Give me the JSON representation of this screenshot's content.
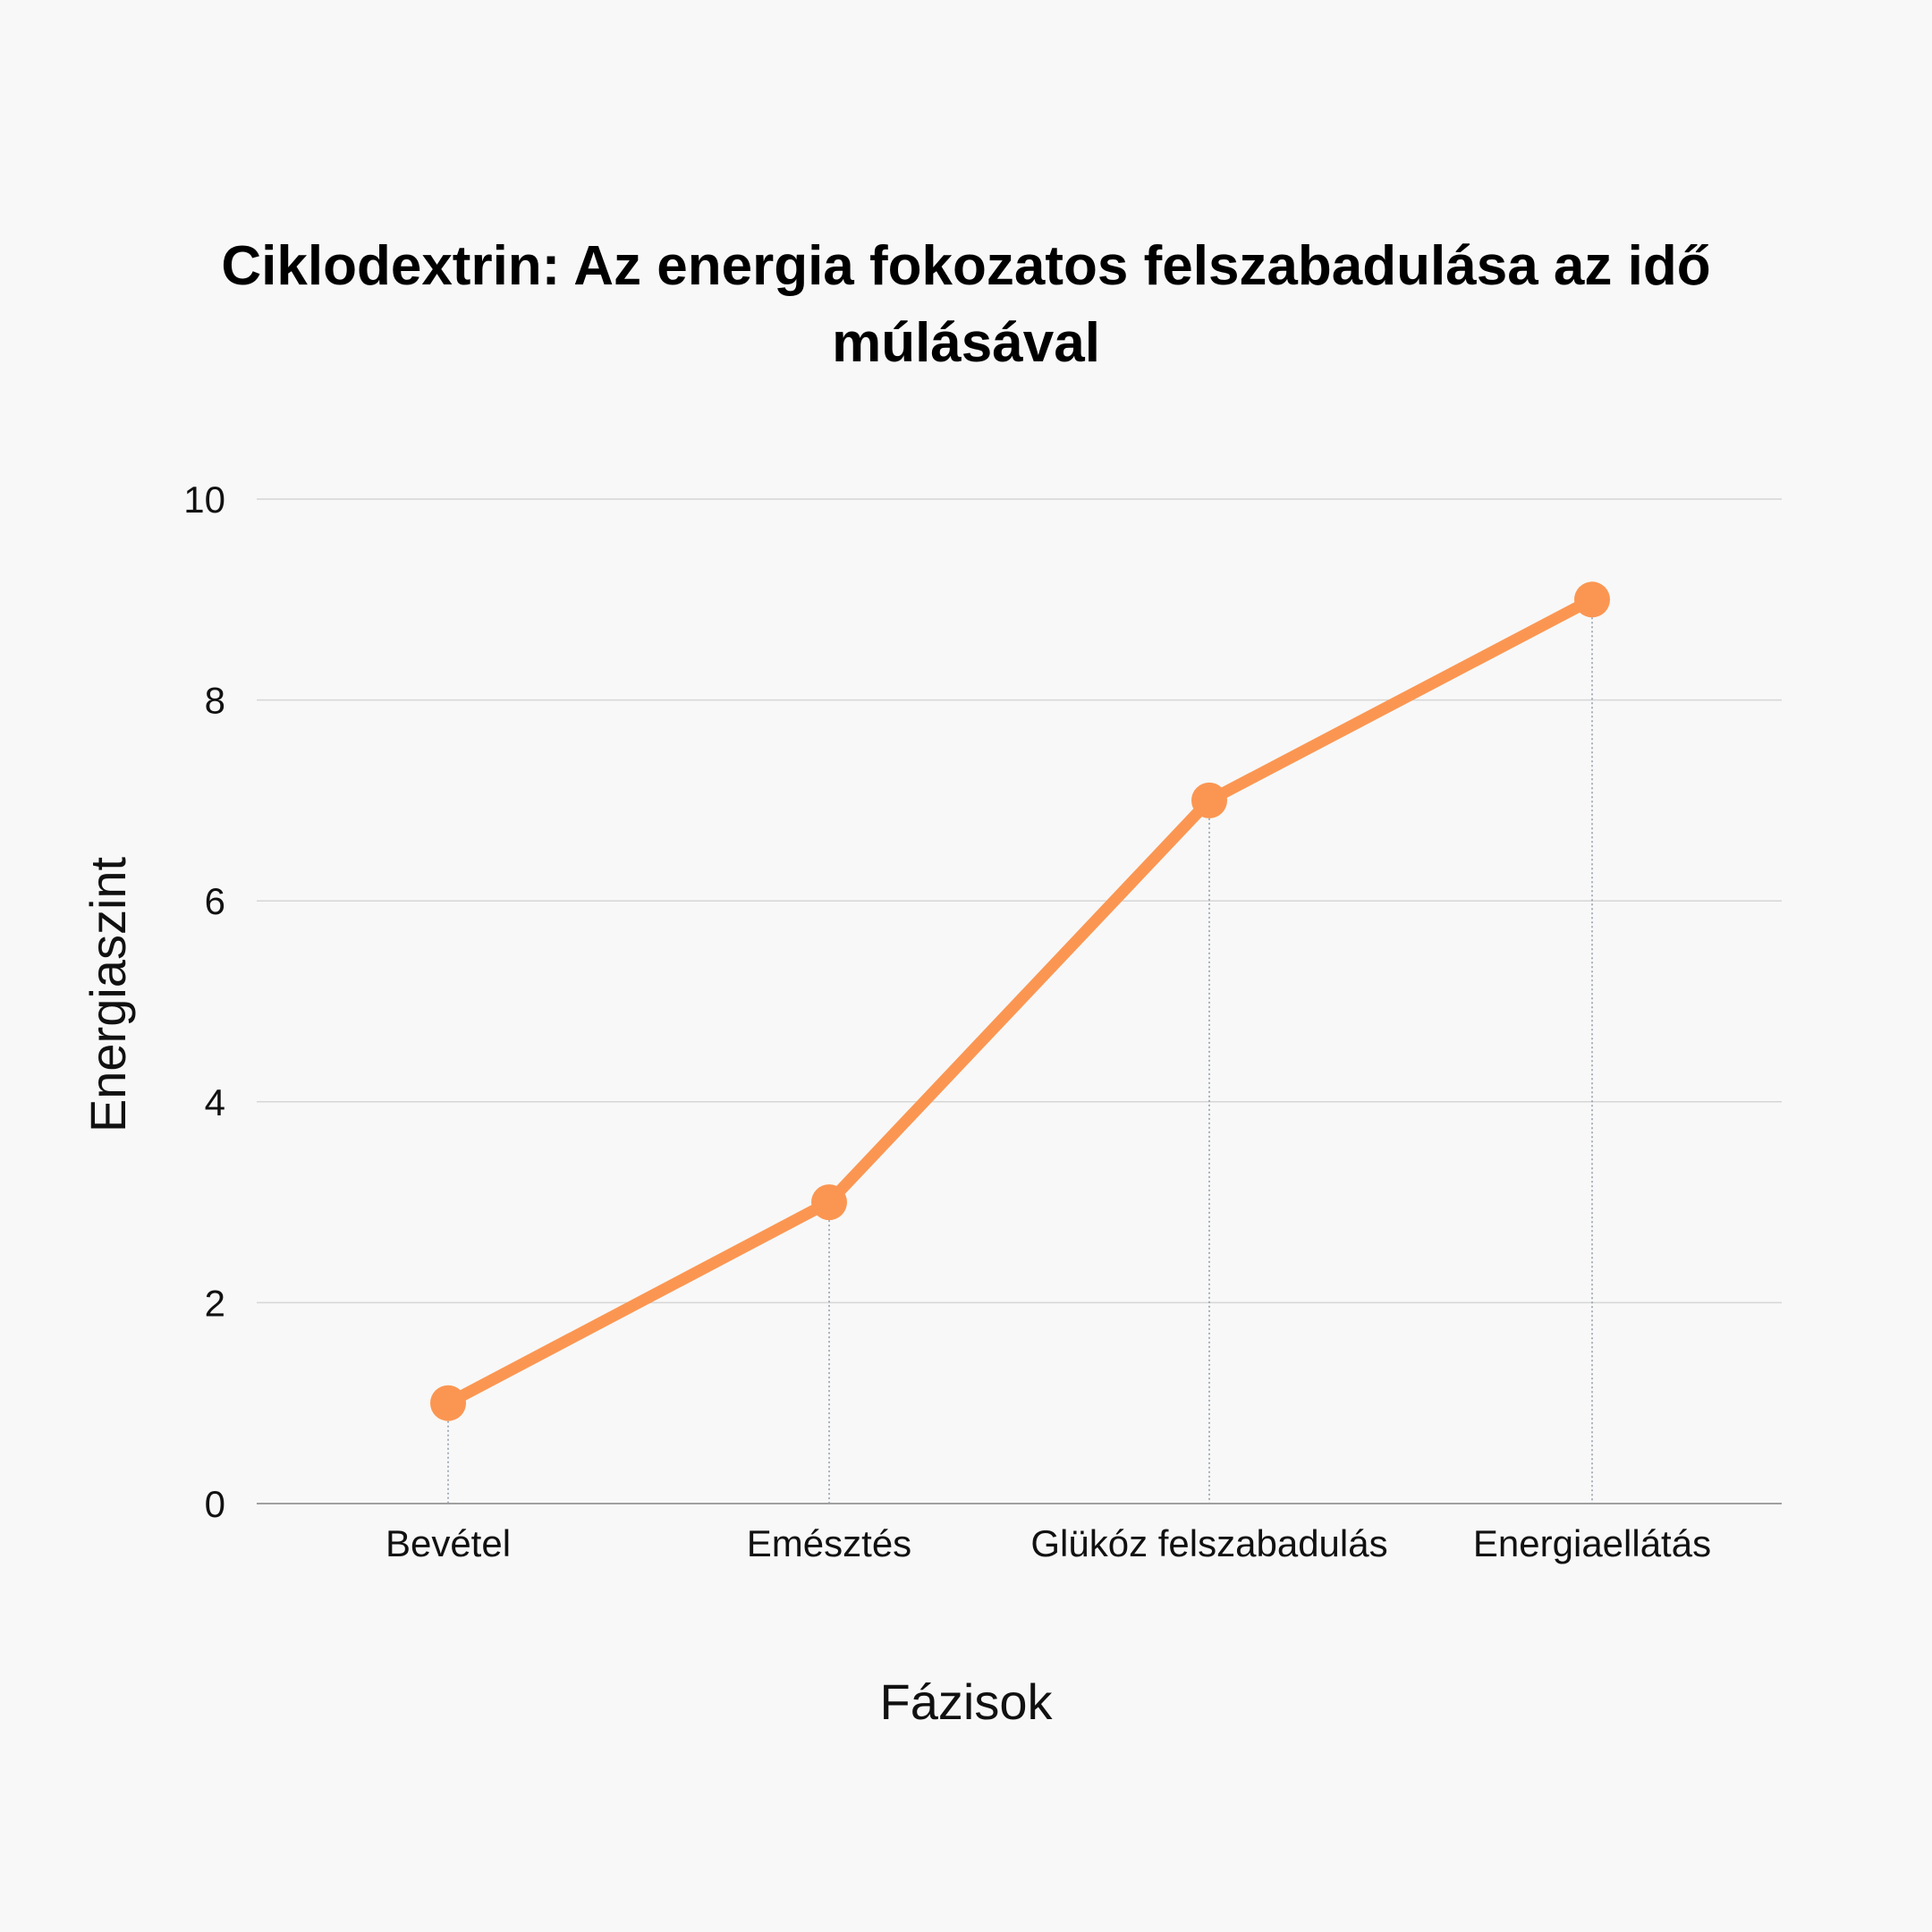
{
  "chart_data": {
    "type": "line",
    "title": "Ciklodextrin: Az energia fokozatos felszabadulása az idő múlásával",
    "xlabel": "Fázisok",
    "ylabel": "Energiaszint",
    "categories": [
      "Bevétel",
      "Emésztés",
      "Glükóz felszabadulás",
      "Energiaellátás"
    ],
    "series": [
      {
        "values": [
          1,
          3,
          7,
          9
        ]
      }
    ],
    "ylim": [
      0,
      10
    ],
    "yticks": [
      "0",
      "2",
      "4",
      "6",
      "8",
      "10"
    ],
    "grid": true,
    "legend": "none"
  },
  "colors": {
    "line": "#fb9652",
    "grid": "#d6d6d6",
    "axis": "#a0a0a0",
    "drop_line": "#8a9aa8",
    "background": "#f8f8f8"
  }
}
